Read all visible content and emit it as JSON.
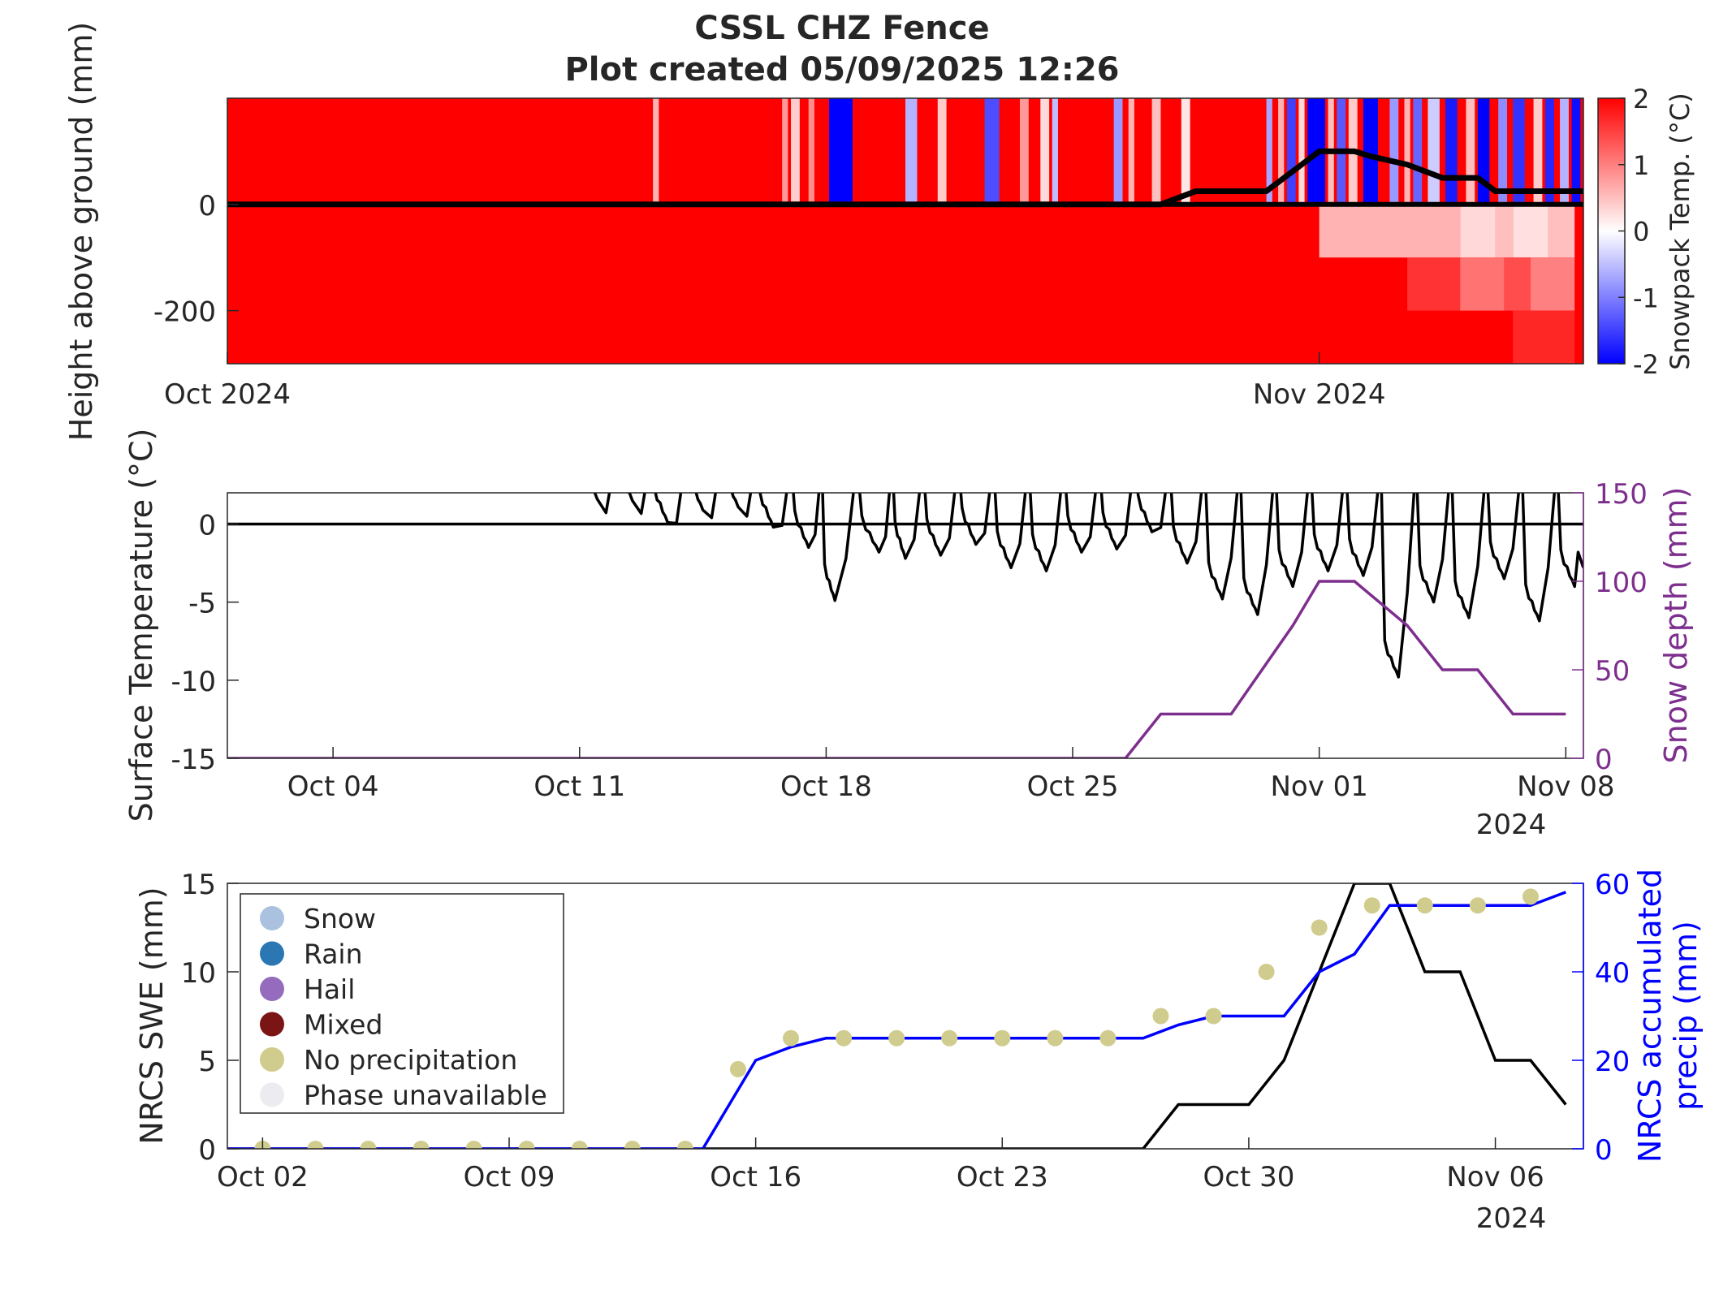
{
  "title": "CSSL CHZ Fence",
  "subtitle": "Plot created 05/09/2025 12:26",
  "chart_data": [
    {
      "type": "heatmap",
      "panel": "snowpack",
      "ylabel": "Height above ground (mm)",
      "ylim": [
        -300,
        200
      ],
      "yticks": [
        0,
        -200
      ],
      "xlim": [
        "2024-10-01",
        "2024-11-08T12:00"
      ],
      "xticks": [
        {
          "date": "2024-10-01",
          "label": "Oct 2024"
        },
        {
          "date": "2024-11-01",
          "label": "Nov 2024"
        }
      ],
      "colorbar": {
        "label": "Snowpack Temp. (°C)",
        "range": [
          -2,
          2
        ],
        "ticks": [
          2,
          1,
          0,
          -1,
          -2
        ],
        "colors": {
          "cold": "#0000ff",
          "zero": "#ffffff",
          "warm": "#ff0000"
        }
      },
      "above_ground_columns": [
        {
          "start": "2024-10-13T02",
          "end": "2024-10-13T06",
          "t": 0.6
        },
        {
          "start": "2024-10-16T18",
          "end": "2024-10-16T22",
          "t": 0.8
        },
        {
          "start": "2024-10-17T00",
          "end": "2024-10-17T06",
          "t": 0.4
        },
        {
          "start": "2024-10-17T12",
          "end": "2024-10-17T16",
          "t": 0.9
        },
        {
          "start": "2024-10-18T02",
          "end": "2024-10-18T18",
          "t": -2
        },
        {
          "start": "2024-10-20T06",
          "end": "2024-10-20T14",
          "t": -0.6
        },
        {
          "start": "2024-10-21T04",
          "end": "2024-10-21T10",
          "t": 0.4
        },
        {
          "start": "2024-10-22T12",
          "end": "2024-10-22T22",
          "t": -1.4
        },
        {
          "start": "2024-10-23T12",
          "end": "2024-10-23T18",
          "t": 0.8
        },
        {
          "start": "2024-10-24T02",
          "end": "2024-10-24T08",
          "t": 0.3
        },
        {
          "start": "2024-10-24T10",
          "end": "2024-10-24T14",
          "t": -0.5
        },
        {
          "start": "2024-10-26T04",
          "end": "2024-10-26T10",
          "t": -0.8
        },
        {
          "start": "2024-10-26T14",
          "end": "2024-10-26T18",
          "t": 0.6
        },
        {
          "start": "2024-10-27T06",
          "end": "2024-10-27T12",
          "t": 0.5
        },
        {
          "start": "2024-10-28T02",
          "end": "2024-10-28T08",
          "t": 0.2
        },
        {
          "start": "2024-10-30T12",
          "end": "2024-10-30T16",
          "t": -0.7
        },
        {
          "start": "2024-10-30T20",
          "end": "2024-10-31T00",
          "t": 0.6
        },
        {
          "start": "2024-10-31T02",
          "end": "2024-10-31T08",
          "t": -1.5
        },
        {
          "start": "2024-10-31T10",
          "end": "2024-10-31T14",
          "t": 0.3
        },
        {
          "start": "2024-10-31T16",
          "end": "2024-11-01T04",
          "t": -2
        },
        {
          "start": "2024-11-01T06",
          "end": "2024-11-01T10",
          "t": 0.5
        },
        {
          "start": "2024-11-01T12",
          "end": "2024-11-01T18",
          "t": -1.3
        },
        {
          "start": "2024-11-01T20",
          "end": "2024-11-02T02",
          "t": 0.4
        },
        {
          "start": "2024-11-02T06",
          "end": "2024-11-02T16",
          "t": -2
        },
        {
          "start": "2024-11-03T00",
          "end": "2024-11-03T06",
          "t": -0.8
        },
        {
          "start": "2024-11-03T10",
          "end": "2024-11-03T14",
          "t": 0.6
        },
        {
          "start": "2024-11-03T16",
          "end": "2024-11-03T22",
          "t": -1.2
        },
        {
          "start": "2024-11-04T02",
          "end": "2024-11-04T10",
          "t": -0.4
        },
        {
          "start": "2024-11-04T14",
          "end": "2024-11-04T22",
          "t": -1.8
        },
        {
          "start": "2024-11-05T04",
          "end": "2024-11-05T10",
          "t": 0.5
        },
        {
          "start": "2024-11-05T12",
          "end": "2024-11-05T20",
          "t": -2
        },
        {
          "start": "2024-11-06T02",
          "end": "2024-11-06T08",
          "t": -0.9
        },
        {
          "start": "2024-11-06T12",
          "end": "2024-11-06T20",
          "t": -1.6
        },
        {
          "start": "2024-11-07T02",
          "end": "2024-11-07T08",
          "t": 0.4
        },
        {
          "start": "2024-11-07T10",
          "end": "2024-11-07T16",
          "t": -1.7
        },
        {
          "start": "2024-11-07T20",
          "end": "2024-11-08T02",
          "t": -0.6
        },
        {
          "start": "2024-11-08T04",
          "end": "2024-11-08T10",
          "t": -1.9
        }
      ],
      "below_ground_cells": [
        {
          "start": "2024-11-01T00",
          "end": "2024-11-05T00",
          "top": 0,
          "bottom": -100,
          "t": 0.6
        },
        {
          "start": "2024-11-05T00",
          "end": "2024-11-06T00",
          "top": 0,
          "bottom": -100,
          "t": 0.3
        },
        {
          "start": "2024-11-06T00",
          "end": "2024-11-06T12",
          "top": 0,
          "bottom": -100,
          "t": 0.5
        },
        {
          "start": "2024-11-06T12",
          "end": "2024-11-07T12",
          "top": 0,
          "bottom": -100,
          "t": 0.25
        },
        {
          "start": "2024-11-07T12",
          "end": "2024-11-08T06",
          "top": 0,
          "bottom": -100,
          "t": 0.5
        },
        {
          "start": "2024-11-03T12",
          "end": "2024-11-05T00",
          "top": -100,
          "bottom": -200,
          "t": 1.6
        },
        {
          "start": "2024-11-05T00",
          "end": "2024-11-06T06",
          "top": -100,
          "bottom": -200,
          "t": 1.1
        },
        {
          "start": "2024-11-06T06",
          "end": "2024-11-07T00",
          "top": -100,
          "bottom": -200,
          "t": 1.4
        },
        {
          "start": "2024-11-07T00",
          "end": "2024-11-08T06",
          "top": -100,
          "bottom": -200,
          "t": 1.0
        },
        {
          "start": "2024-11-06T12",
          "end": "2024-11-08T06",
          "top": -200,
          "bottom": -300,
          "t": 1.7
        }
      ],
      "snow_height_line": {
        "x": [
          "2024-10-01",
          "2024-10-27T12",
          "2024-10-28T12",
          "2024-10-30T12",
          "2024-10-31T12",
          "2024-11-01",
          "2024-11-01T12",
          "2024-11-02",
          "2024-11-02T12",
          "2024-11-03T12",
          "2024-11-04T12",
          "2024-11-05T12",
          "2024-11-06",
          "2024-11-08T12"
        ],
        "y": [
          0,
          0,
          25,
          25,
          75,
          100,
          100,
          100,
          90,
          75,
          50,
          50,
          25,
          25
        ]
      }
    },
    {
      "type": "line",
      "panel": "surface",
      "ylabel": "Surface Temperature (°C)",
      "y2label": "Snow depth (mm)",
      "ylim": [
        -15,
        2
      ],
      "y2lim": [
        0,
        150
      ],
      "yticks": [
        0,
        -5,
        -10,
        -15
      ],
      "y2ticks": [
        150,
        100,
        50,
        0
      ],
      "xlim": [
        "2024-10-01",
        "2024-11-08T12:00"
      ],
      "xticks": [
        {
          "date": "2024-10-04",
          "label": "Oct 04"
        },
        {
          "date": "2024-10-11",
          "label": "Oct 11"
        },
        {
          "date": "2024-10-18",
          "label": "Oct 18"
        },
        {
          "date": "2024-10-25",
          "label": "Oct 25"
        },
        {
          "date": "2024-11-01",
          "label": "Nov 01"
        },
        {
          "date": "2024-11-08",
          "label": "Nov 08"
        }
      ],
      "year_label": "2024",
      "series": [
        {
          "color": "#000000",
          "axis": "left",
          "daily_min": [
            {
              "x": "2024-10-11T12",
              "y": 1.6
            },
            {
              "x": "2024-10-12T12",
              "y": 1.5
            },
            {
              "x": "2024-10-13T12",
              "y": 0.1
            },
            {
              "x": "2024-10-14T12",
              "y": 0.9
            },
            {
              "x": "2024-10-15T12",
              "y": 1.1
            },
            {
              "x": "2024-10-16T12",
              "y": -0.2
            },
            {
              "x": "2024-10-17T12",
              "y": -1.5
            },
            {
              "x": "2024-10-18T06",
              "y": -4.9
            },
            {
              "x": "2024-10-19T12",
              "y": -1.8
            },
            {
              "x": "2024-10-20T06",
              "y": -2.2
            },
            {
              "x": "2024-10-21T06",
              "y": -2.0
            },
            {
              "x": "2024-10-22T06",
              "y": -1.3
            },
            {
              "x": "2024-10-23T06",
              "y": -2.8
            },
            {
              "x": "2024-10-24T06",
              "y": -3.0
            },
            {
              "x": "2024-10-25T06",
              "y": -1.8
            },
            {
              "x": "2024-10-26T06",
              "y": -1.6
            },
            {
              "x": "2024-10-27T06",
              "y": -0.5
            },
            {
              "x": "2024-10-28T06",
              "y": -2.5
            },
            {
              "x": "2024-10-29T06",
              "y": -4.8
            },
            {
              "x": "2024-10-30T06",
              "y": -5.8
            },
            {
              "x": "2024-10-31T06",
              "y": -4.0
            },
            {
              "x": "2024-11-01T06",
              "y": -3.0
            },
            {
              "x": "2024-11-02T06",
              "y": -3.3
            },
            {
              "x": "2024-11-03T06",
              "y": -9.8
            },
            {
              "x": "2024-11-04T06",
              "y": -5.0
            },
            {
              "x": "2024-11-05T06",
              "y": -6.0
            },
            {
              "x": "2024-11-06T06",
              "y": -3.5
            },
            {
              "x": "2024-11-07T06",
              "y": -6.2
            },
            {
              "x": "2024-11-08T06",
              "y": -4.0
            }
          ],
          "end": {
            "x": "2024-11-08T12",
            "y": -2.8
          }
        },
        {
          "color": "#7e2f8e",
          "axis": "right",
          "x": [
            "2024-10-01",
            "2024-10-26T12",
            "2024-10-27T12",
            "2024-10-29T12",
            "2024-10-31T06",
            "2024-11-01",
            "2024-11-02",
            "2024-11-03T12",
            "2024-11-04T12",
            "2024-11-05T12",
            "2024-11-06T12",
            "2024-11-08"
          ],
          "y": [
            0,
            0,
            25,
            25,
            75,
            100,
            100,
            75,
            50,
            50,
            25,
            25
          ]
        }
      ]
    },
    {
      "type": "line",
      "panel": "nrcs",
      "ylabel": "NRCS SWE (mm)",
      "y2label": "NRCS accumulated precip (mm)",
      "ylim": [
        0,
        15
      ],
      "y2lim": [
        0,
        60
      ],
      "yticks": [
        15,
        10,
        5,
        0
      ],
      "y2ticks": [
        60,
        40,
        20,
        0
      ],
      "xlim": [
        "2024-10-01",
        "2024-11-08T12:00"
      ],
      "xticks": [
        {
          "date": "2024-10-02",
          "label": "Oct 02"
        },
        {
          "date": "2024-10-09",
          "label": "Oct 09"
        },
        {
          "date": "2024-10-16",
          "label": "Oct 16"
        },
        {
          "date": "2024-10-23",
          "label": "Oct 23"
        },
        {
          "date": "2024-10-30",
          "label": "Oct 30"
        },
        {
          "date": "2024-11-06",
          "label": "Nov 06"
        }
      ],
      "year_label": "2024",
      "series": [
        {
          "color": "#000000",
          "axis": "left",
          "x": [
            "2024-10-01",
            "2024-10-27",
            "2024-10-28",
            "2024-10-30",
            "2024-10-31",
            "2024-11-02",
            "2024-11-03",
            "2024-11-04",
            "2024-11-05",
            "2024-11-06",
            "2024-11-07",
            "2024-11-08"
          ],
          "y": [
            0,
            0,
            2.5,
            2.5,
            5,
            15,
            15,
            10,
            10,
            5,
            5,
            2.5
          ]
        },
        {
          "color": "#0000ff",
          "axis": "right",
          "x": [
            "2024-10-01",
            "2024-10-14T12",
            "2024-10-16",
            "2024-10-17",
            "2024-10-18",
            "2024-10-27",
            "2024-10-28",
            "2024-10-29",
            "2024-10-30",
            "2024-10-31",
            "2024-11-01",
            "2024-11-02",
            "2024-11-03",
            "2024-11-07",
            "2024-11-08"
          ],
          "y": [
            0,
            0,
            20,
            23,
            25,
            25,
            28,
            30,
            30,
            30,
            40,
            44,
            55,
            55,
            58
          ]
        }
      ],
      "phase_markers": {
        "axis": "right",
        "phase": "No precipitation",
        "x": [
          "2024-10-02",
          "2024-10-03T12",
          "2024-10-05",
          "2024-10-06T12",
          "2024-10-08",
          "2024-10-09T12",
          "2024-10-11",
          "2024-10-12T12",
          "2024-10-14",
          "2024-10-15T12",
          "2024-10-17",
          "2024-10-18T12",
          "2024-10-20",
          "2024-10-21T12",
          "2024-10-23",
          "2024-10-24T12",
          "2024-10-26",
          "2024-10-27T12",
          "2024-10-29",
          "2024-10-30T12",
          "2024-11-01",
          "2024-11-02T12",
          "2024-11-04",
          "2024-11-05T12",
          "2024-11-07"
        ],
        "y": [
          0,
          0,
          0,
          0,
          0,
          0,
          0,
          0,
          0,
          18,
          25,
          25,
          25,
          25,
          25,
          25,
          25,
          30,
          30,
          40,
          50,
          55,
          55,
          55,
          57
        ]
      },
      "legend": {
        "location": "top-left",
        "items": [
          {
            "label": "Snow",
            "color": "#aac2df"
          },
          {
            "label": "Rain",
            "color": "#2a77b4"
          },
          {
            "label": "Hail",
            "color": "#946bbd"
          },
          {
            "label": "Mixed",
            "color": "#7b1414"
          },
          {
            "label": "No precipitation",
            "color": "#d0cc8e"
          },
          {
            "label": "Phase unavailable",
            "color": "#ececf0"
          }
        ]
      }
    }
  ]
}
